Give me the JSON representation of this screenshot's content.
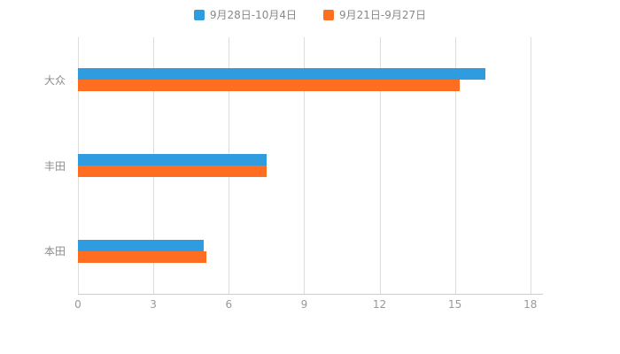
{
  "chart_data": {
    "type": "bar",
    "orientation": "horizontal",
    "title": "",
    "categories": [
      "大众",
      "丰田",
      "本田"
    ],
    "series": [
      {
        "name": "9月28日-10月4日",
        "color": "#2f9ce0",
        "values": [
          16.2,
          7.5,
          5.0
        ]
      },
      {
        "name": "9月21日-9月27日",
        "color": "#ff6e20",
        "values": [
          15.2,
          7.5,
          5.1
        ]
      }
    ],
    "xlabel": "",
    "ylabel": "",
    "xlim": [
      0,
      18
    ],
    "x_max_display": 18.5,
    "x_ticks": [
      0,
      3,
      6,
      9,
      12,
      15,
      18
    ],
    "grid": true,
    "legend_position": "top"
  },
  "colors": {
    "gridline": "#dddddd",
    "axis_line": "#cccccc",
    "tick_text": "#999999",
    "category_text": "#8c8c8c",
    "legend_text": "#898989"
  }
}
